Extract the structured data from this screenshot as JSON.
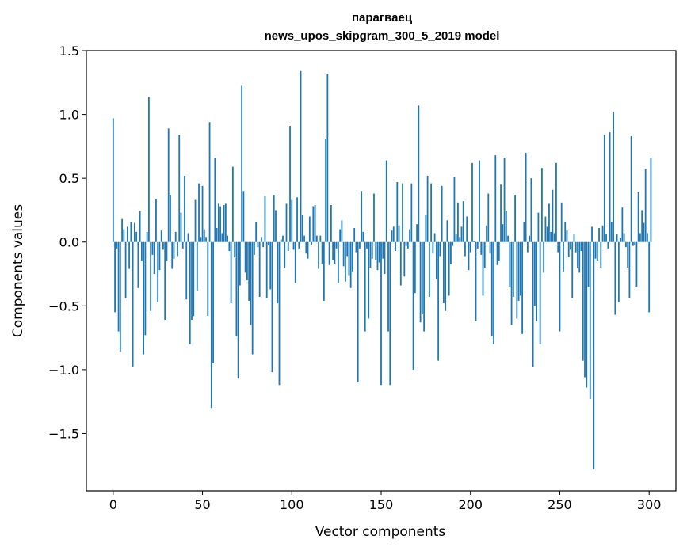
{
  "chart_data": {
    "type": "bar",
    "title": "парагваец",
    "subtitle": "news_upos_skipgram_300_5_2019 model",
    "xlabel": "Vector components",
    "ylabel": "Components values",
    "xlim": [
      -15,
      315
    ],
    "ylim": [
      -1.95,
      1.5
    ],
    "xticks": [
      0,
      50,
      100,
      150,
      200,
      250,
      300
    ],
    "yticks": [
      1.5,
      1.0,
      0.5,
      0.0,
      -0.5,
      -1.0,
      -1.5
    ],
    "ytick_labels": [
      "1.5",
      "1.0",
      "0.5",
      "0.0",
      "−0.5",
      "−1.0",
      "−1.5"
    ],
    "bar_color": "#1f77b4",
    "grid": false,
    "values": [
      0.97,
      -0.55,
      -0.05,
      -0.7,
      -0.86,
      0.18,
      0.1,
      -0.44,
      0.12,
      -0.21,
      0.16,
      -0.98,
      0.15,
      0.08,
      -0.36,
      0.24,
      -0.15,
      -0.88,
      -0.73,
      0.08,
      1.14,
      -0.54,
      -0.1,
      -0.25,
      0.34,
      -0.47,
      -0.22,
      0.09,
      -0.06,
      -0.61,
      -0.15,
      0.89,
      0.37,
      -0.21,
      -0.13,
      0.08,
      -0.11,
      0.84,
      0.23,
      -0.05,
      0.52,
      -0.45,
      0.07,
      -0.8,
      -0.61,
      -0.58,
      0.33,
      -0.38,
      0.46,
      0.04,
      0.44,
      0.1,
      0.04,
      -0.58,
      0.94,
      -1.3,
      -0.95,
      0.66,
      0.11,
      0.3,
      0.28,
      0.07,
      0.29,
      0.3,
      0.05,
      -0.07,
      -0.48,
      0.59,
      -0.12,
      -0.74,
      -1.07,
      -0.34,
      1.23,
      0.4,
      -0.24,
      -0.3,
      -0.46,
      -0.65,
      -0.88,
      -0.1,
      0.16,
      -0.04,
      -0.43,
      0.04,
      -0.04,
      0.36,
      -0.44,
      -0.02,
      -0.37,
      -1.02,
      0.37,
      0.25,
      -0.48,
      -1.12,
      0.02,
      0.05,
      -0.2,
      0.3,
      -0.07,
      0.91,
      0.33,
      -0.06,
      -0.32,
      0.35,
      -0.05,
      1.34,
      0.21,
      0.05,
      -0.09,
      -0.13,
      0.2,
      -0.02,
      0.28,
      0.29,
      0.05,
      -0.21,
      0.05,
      -0.17,
      -0.46,
      0.81,
      1.32,
      -0.18,
      0.29,
      -0.14,
      -0.17,
      -0.05,
      -0.32,
      0.1,
      0.17,
      -0.19,
      -0.31,
      -0.11,
      -0.26,
      -0.36,
      -0.23,
      0.11,
      -0.08,
      -1.1,
      -0.05,
      0.4,
      0.08,
      -0.7,
      -0.05,
      -0.6,
      -0.2,
      -0.13,
      0.38,
      -0.14,
      -0.22,
      -0.16,
      -1.12,
      -0.13,
      -0.25,
      0.64,
      -0.7,
      -1.12,
      0.09,
      0.12,
      -0.07,
      0.47,
      0.13,
      -0.34,
      0.46,
      -0.27,
      -0.03,
      -0.05,
      0.1,
      0.46,
      -1.0,
      -0.4,
      0.14,
      1.07,
      -0.63,
      -0.56,
      -0.7,
      0.21,
      0.52,
      -0.43,
      0.46,
      -0.09,
      0.07,
      -0.29,
      -0.93,
      -0.11,
      0.44,
      -0.48,
      -0.54,
      0.17,
      -0.42,
      -0.17,
      -0.03,
      0.51,
      0.06,
      0.31,
      0.04,
      0.12,
      0.32,
      -0.11,
      0.2,
      -0.22,
      -0.08,
      0.62,
      0.01,
      -0.62,
      -0.05,
      0.64,
      -0.1,
      -0.42,
      -0.2,
      0.13,
      0.38,
      -0.09,
      -0.74,
      -0.8,
      0.68,
      -0.18,
      -0.15,
      0.45,
      0.14,
      0.66,
      0.24,
      0.05,
      -0.35,
      -0.65,
      -0.43,
      0.37,
      -0.6,
      -0.46,
      -0.42,
      -0.72,
      0.16,
      0.7,
      -0.08,
      0.05,
      0.5,
      -0.98,
      -0.5,
      -0.62,
      0.23,
      -0.8,
      0.58,
      -0.24,
      0.2,
      0.12,
      0.3,
      0.08,
      0.41,
      0.07,
      0.62,
      -0.08,
      -0.7,
      0.31,
      -0.23,
      0.16,
      0.09,
      -0.12,
      -0.06,
      -0.44,
      0.06,
      -0.08,
      -0.2,
      -0.24,
      -0.07,
      -0.93,
      -1.06,
      -1.14,
      -0.35,
      -1.23,
      0.12,
      -1.78,
      -0.13,
      -0.15,
      0.11,
      -0.2,
      0.13,
      0.84,
      0.06,
      -0.05,
      0.86,
      0.16,
      1.02,
      -0.57,
      0.06,
      -0.47,
      0.03,
      0.27,
      0.07,
      -0.04,
      -0.2,
      -0.44,
      0.83,
      -0.03,
      -0.02,
      -0.35,
      0.39,
      0.07,
      0.25,
      0.15,
      0.57,
      0.07,
      -0.55,
      0.66
    ]
  }
}
